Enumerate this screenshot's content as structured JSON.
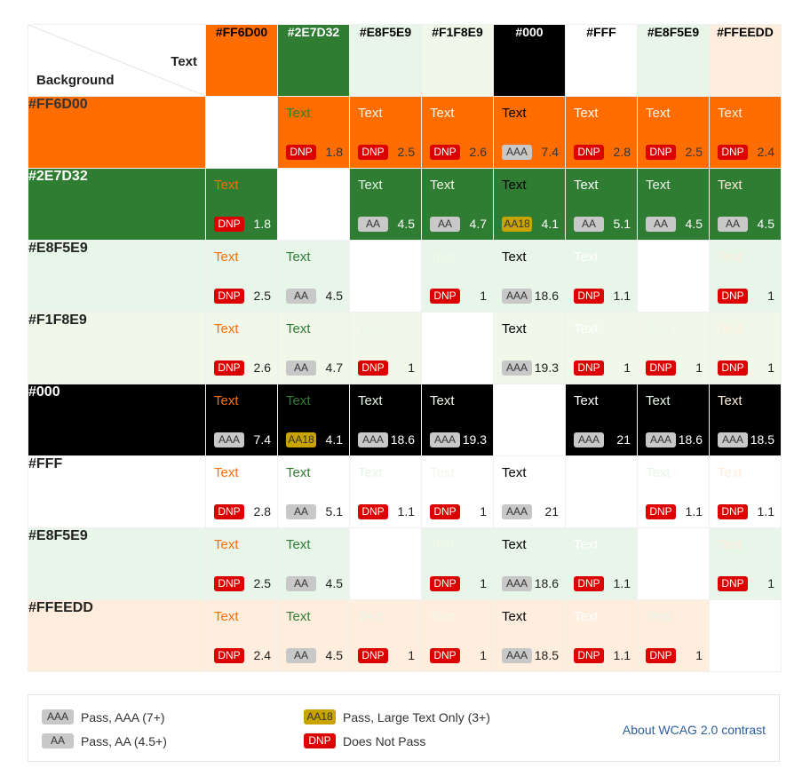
{
  "corner": {
    "text_label": "Text",
    "background_label": "Background"
  },
  "columns": [
    {
      "name": "#FF6D00",
      "bg": "#FF6D00",
      "fg": "#000000"
    },
    {
      "name": "#2E7D32",
      "bg": "#2E7D32",
      "fg": "#FFFFFF"
    },
    {
      "name": "#E8F5E9",
      "bg": "#E8F5E9",
      "fg": "#000000"
    },
    {
      "name": "#F1F8E9",
      "bg": "#F1F8E9",
      "fg": "#000000"
    },
    {
      "name": "#000",
      "bg": "#000000",
      "fg": "#FFFFFF"
    },
    {
      "name": "#FFF",
      "bg": "#FFFFFF",
      "fg": "#000000"
    },
    {
      "name": "#E8F5E9",
      "bg": "#E8F5E9",
      "fg": "#000000"
    },
    {
      "name": "#FFEEDD",
      "bg": "#FFEEDD",
      "fg": "#000000"
    }
  ],
  "rows": [
    {
      "name": "#FF6D00",
      "bg": "#FF6D00",
      "fg": "#333333"
    },
    {
      "name": "#2E7D32",
      "bg": "#2E7D32",
      "fg": "#FFFFFF"
    },
    {
      "name": "#E8F5E9",
      "bg": "#E8F5E9",
      "fg": "#222222"
    },
    {
      "name": "#F1F8E9",
      "bg": "#F1F8E9",
      "fg": "#222222"
    },
    {
      "name": "#000",
      "bg": "#000000",
      "fg": "#FFFFFF"
    },
    {
      "name": "#FFF",
      "bg": "#FFFFFF",
      "fg": "#222222"
    },
    {
      "name": "#E8F5E9",
      "bg": "#E8F5E9",
      "fg": "#222222"
    },
    {
      "name": "#FFEEDD",
      "bg": "#FFEEDD",
      "fg": "#222222"
    }
  ],
  "sample_text": "Text",
  "cells": [
    [
      null,
      {
        "badge": "DNP",
        "ratio": "1.8"
      },
      {
        "badge": "DNP",
        "ratio": "2.5"
      },
      {
        "badge": "DNP",
        "ratio": "2.6"
      },
      {
        "badge": "AAA",
        "ratio": "7.4"
      },
      {
        "badge": "DNP",
        "ratio": "2.8"
      },
      {
        "badge": "DNP",
        "ratio": "2.5"
      },
      {
        "badge": "DNP",
        "ratio": "2.4"
      }
    ],
    [
      {
        "badge": "DNP",
        "ratio": "1.8"
      },
      null,
      {
        "badge": "AA",
        "ratio": "4.5"
      },
      {
        "badge": "AA",
        "ratio": "4.7"
      },
      {
        "badge": "AA18",
        "ratio": "4.1"
      },
      {
        "badge": "AA",
        "ratio": "5.1"
      },
      {
        "badge": "AA",
        "ratio": "4.5"
      },
      {
        "badge": "AA",
        "ratio": "4.5"
      }
    ],
    [
      {
        "badge": "DNP",
        "ratio": "2.5"
      },
      {
        "badge": "AA",
        "ratio": "4.5"
      },
      null,
      {
        "badge": "DNP",
        "ratio": "1"
      },
      {
        "badge": "AAA",
        "ratio": "18.6"
      },
      {
        "badge": "DNP",
        "ratio": "1.1"
      },
      null,
      {
        "badge": "DNP",
        "ratio": "1"
      }
    ],
    [
      {
        "badge": "DNP",
        "ratio": "2.6"
      },
      {
        "badge": "AA",
        "ratio": "4.7"
      },
      {
        "badge": "DNP",
        "ratio": "1"
      },
      null,
      {
        "badge": "AAA",
        "ratio": "19.3"
      },
      {
        "badge": "DNP",
        "ratio": "1"
      },
      {
        "badge": "DNP",
        "ratio": "1"
      },
      {
        "badge": "DNP",
        "ratio": "1"
      }
    ],
    [
      {
        "badge": "AAA",
        "ratio": "7.4"
      },
      {
        "badge": "AA18",
        "ratio": "4.1"
      },
      {
        "badge": "AAA",
        "ratio": "18.6"
      },
      {
        "badge": "AAA",
        "ratio": "19.3"
      },
      null,
      {
        "badge": "AAA",
        "ratio": "21"
      },
      {
        "badge": "AAA",
        "ratio": "18.6"
      },
      {
        "badge": "AAA",
        "ratio": "18.5"
      }
    ],
    [
      {
        "badge": "DNP",
        "ratio": "2.8"
      },
      {
        "badge": "AA",
        "ratio": "5.1"
      },
      {
        "badge": "DNP",
        "ratio": "1.1"
      },
      {
        "badge": "DNP",
        "ratio": "1"
      },
      {
        "badge": "AAA",
        "ratio": "21"
      },
      null,
      {
        "badge": "DNP",
        "ratio": "1.1"
      },
      {
        "badge": "DNP",
        "ratio": "1.1"
      }
    ],
    [
      {
        "badge": "DNP",
        "ratio": "2.5"
      },
      {
        "badge": "AA",
        "ratio": "4.5"
      },
      null,
      {
        "badge": "DNP",
        "ratio": "1"
      },
      {
        "badge": "AAA",
        "ratio": "18.6"
      },
      {
        "badge": "DNP",
        "ratio": "1.1"
      },
      null,
      {
        "badge": "DNP",
        "ratio": "1"
      }
    ],
    [
      {
        "badge": "DNP",
        "ratio": "2.4"
      },
      {
        "badge": "AA",
        "ratio": "4.5"
      },
      {
        "badge": "DNP",
        "ratio": "1"
      },
      {
        "badge": "DNP",
        "ratio": "1"
      },
      {
        "badge": "AAA",
        "ratio": "18.5"
      },
      {
        "badge": "DNP",
        "ratio": "1.1"
      },
      {
        "badge": "DNP",
        "ratio": "1"
      },
      null
    ]
  ],
  "legend": {
    "aaa_badge": "AAA",
    "aaa_label": "Pass, AAA (7+)",
    "aa_badge": "AA",
    "aa_label": "Pass, AA (4.5+)",
    "aa18_badge": "AA18",
    "aa18_label": "Pass, Large Text Only (3+)",
    "dnp_badge": "DNP",
    "dnp_label": "Does Not Pass",
    "about_link": "About WCAG 2.0 contrast"
  },
  "colors": {
    "dnp": "#DD0000",
    "aa": "#C8C8C8",
    "aaa": "#C8C8C8",
    "aa18": "#C9A400",
    "link": "#2B5F9E"
  }
}
